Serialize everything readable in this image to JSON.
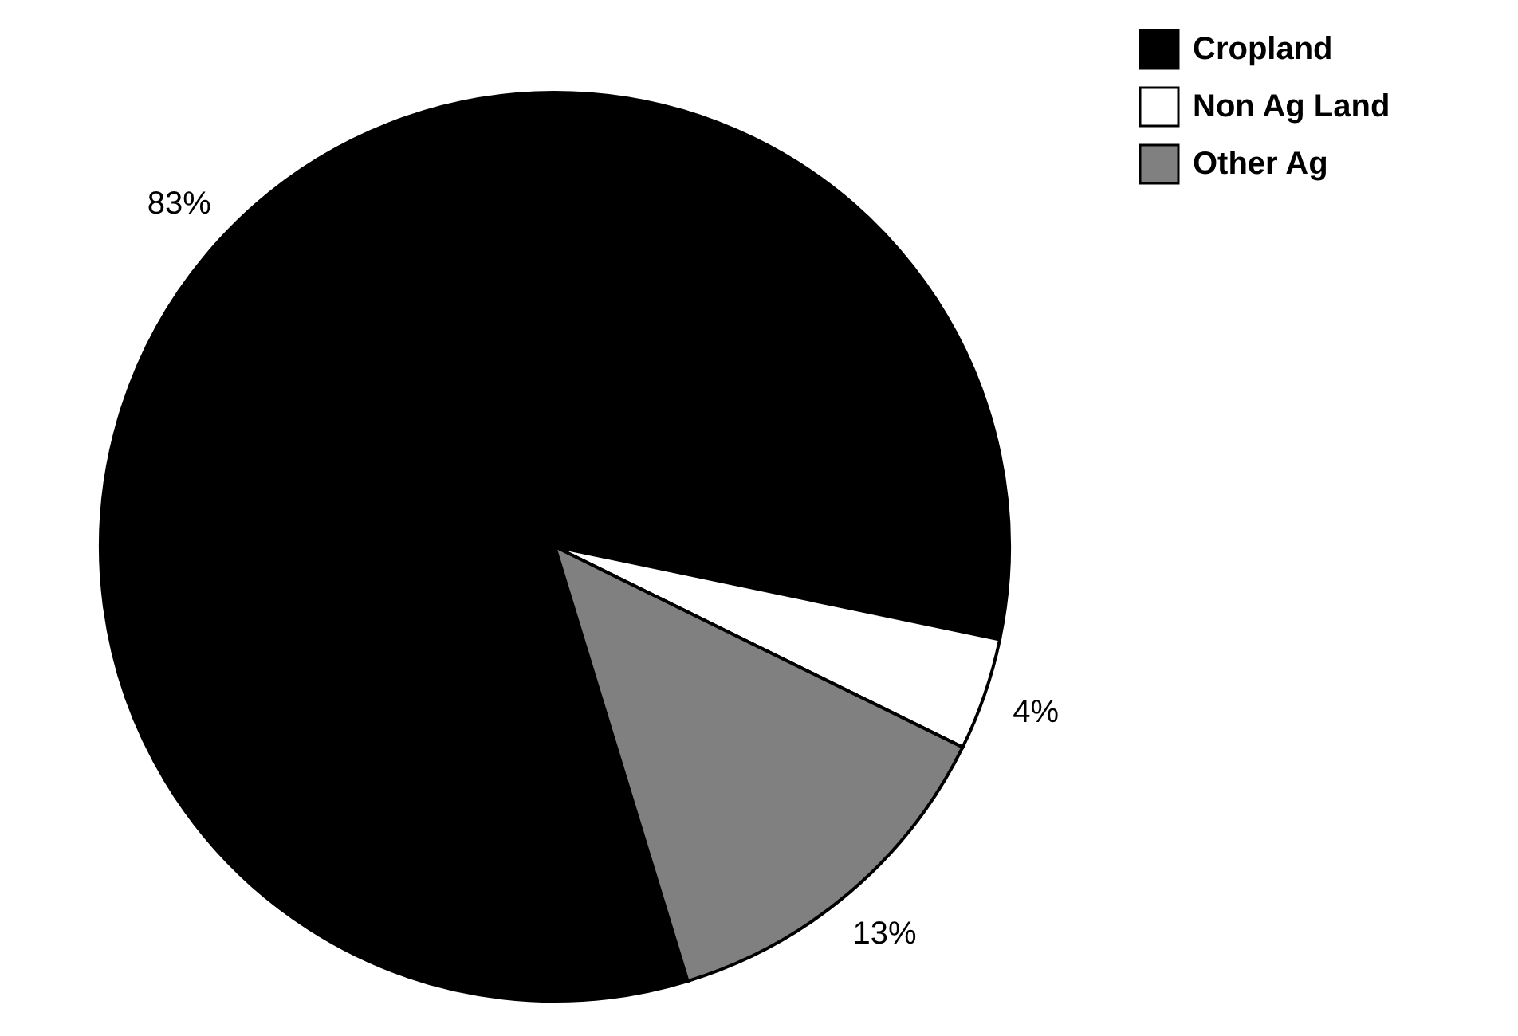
{
  "chart_data": {
    "type": "pie",
    "categories": [
      "Cropland",
      "Non Ag Land",
      "Other Ag"
    ],
    "values": [
      83,
      4,
      13
    ],
    "value_labels": [
      "83%",
      "4%",
      "13%"
    ],
    "colors": [
      "#000000",
      "#ffffff",
      "#808080"
    ],
    "legend": "top right"
  }
}
